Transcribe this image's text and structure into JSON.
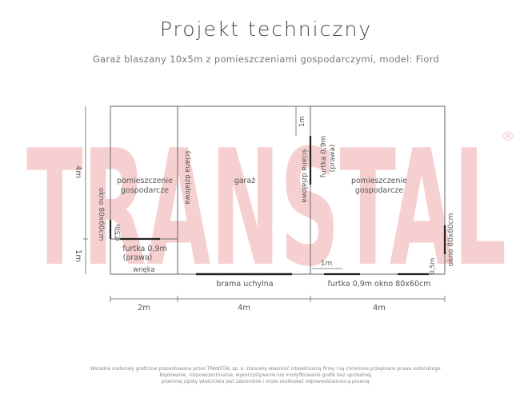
{
  "title": "Projekt techniczny",
  "subtitle": "Garaż blaszany 10x5m z pomieszczeniami gospodarczymi, model: Fiord",
  "watermark": "TRANSTAL",
  "colors": {
    "watermark": "#f6d0d0",
    "lines": "#666666",
    "text": "#555555",
    "accent": "#222222"
  },
  "left_room": {
    "label_1": "pomieszczenie",
    "label_2": "gospodarcze",
    "window": "okno 80x60cm",
    "gate_small": "0,5m",
    "gate_1": "furtka 0,9m",
    "gate_2": "(prawa)",
    "corner": "wnęka"
  },
  "garage": {
    "label": "garaż",
    "wall_left": "ściana działowa",
    "gate": "brama uchylna"
  },
  "right_room": {
    "label_1": "pomieszczenie",
    "label_2": "gospodarcze",
    "wall": "ściana działowa",
    "door_1": "furtka 0,9m",
    "door_2": "(prawa)",
    "top_dim": "1m",
    "mid_dim": "1m",
    "bottom_label": "furtka 0,9m okno 80x60cm",
    "small_dim": "0,5m",
    "window": "okno 80x60cm"
  },
  "dimensions": {
    "height_total": "4m",
    "height_part": "1m",
    "width_left": "2m",
    "width_mid": "4m",
    "width_right": "4m"
  },
  "footer": [
    "Wszelkie materiały graficzne prezentowane przez TRANSTAL sp. k. stanowią własność intelektualną firmy i są chronione przepisami prawa autorskiego.",
    "Kopiowanie, rozpowszechnianie, wykorzystywanie lub modyfikowanie grafik bez uprzedniej,",
    "pisemnej zgody właściciela jest zabronione i może skutkować odpowiedzialnością prawną."
  ]
}
